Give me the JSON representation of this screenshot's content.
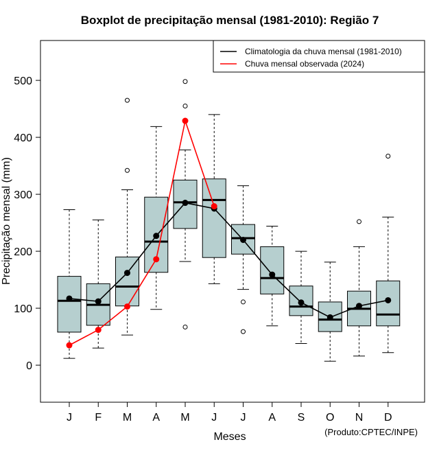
{
  "chart_data": {
    "type": "boxplot",
    "title": "Boxplot de precipitação mensal (1981-2010): Região 7",
    "xlabel": "Meses",
    "ylabel": "Precipitação mensal (mm)",
    "credit": "(Produto:CPTEC/INPE)",
    "ylim": [
      -65,
      570
    ],
    "yticks": [
      0,
      100,
      200,
      300,
      400,
      500
    ],
    "categories": [
      "J",
      "F",
      "M",
      "A",
      "M",
      "J",
      "J",
      "A",
      "S",
      "O",
      "N",
      "D"
    ],
    "boxes": [
      {
        "whisker_low": 12,
        "q1": 58,
        "median": 113,
        "q3": 156,
        "whisker_high": 273,
        "outliers": []
      },
      {
        "whisker_low": 30,
        "q1": 70,
        "median": 106,
        "q3": 143,
        "whisker_high": 255,
        "outliers": []
      },
      {
        "whisker_low": 53,
        "q1": 104,
        "median": 138,
        "q3": 190,
        "whisker_high": 308,
        "outliers": [
          342,
          465
        ]
      },
      {
        "whisker_low": 98,
        "q1": 163,
        "median": 217,
        "q3": 295,
        "whisker_high": 419,
        "outliers": []
      },
      {
        "whisker_low": 182,
        "q1": 240,
        "median": 286,
        "q3": 325,
        "whisker_high": 378,
        "outliers": [
          67,
          455,
          498
        ]
      },
      {
        "whisker_low": 143,
        "q1": 189,
        "median": 290,
        "q3": 327,
        "whisker_high": 440,
        "outliers": []
      },
      {
        "whisker_low": 133,
        "q1": 195,
        "median": 223,
        "q3": 247,
        "whisker_high": 315,
        "outliers": [
          59,
          111
        ]
      },
      {
        "whisker_low": 69,
        "q1": 125,
        "median": 153,
        "q3": 208,
        "whisker_high": 244,
        "outliers": []
      },
      {
        "whisker_low": 38,
        "q1": 87,
        "median": 103,
        "q3": 139,
        "whisker_high": 200,
        "outliers": []
      },
      {
        "whisker_low": 7,
        "q1": 59,
        "median": 80,
        "q3": 111,
        "whisker_high": 181,
        "outliers": []
      },
      {
        "whisker_low": 16,
        "q1": 69,
        "median": 99,
        "q3": 130,
        "whisker_high": 208,
        "outliers": [
          252
        ]
      },
      {
        "whisker_low": 22,
        "q1": 69,
        "median": 89,
        "q3": 148,
        "whisker_high": 260,
        "outliers": [
          367
        ]
      }
    ],
    "series": [
      {
        "name": "Climatologia da chuva mensal (1981-2010)",
        "color": "#000000",
        "values": [
          117,
          112,
          162,
          227,
          285,
          275,
          220,
          159,
          110,
          84,
          104,
          114
        ]
      },
      {
        "name": "Chuva mensal observada (2024)",
        "color": "#ff0000",
        "values": [
          35,
          62,
          103,
          186,
          429,
          279,
          null,
          null,
          null,
          null,
          null,
          null
        ]
      }
    ],
    "box_fill": "#b6cfcf",
    "legend_position": "top-right"
  }
}
